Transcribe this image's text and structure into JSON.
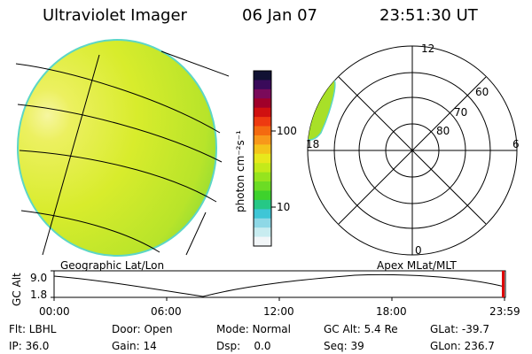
{
  "header": {
    "title": "Ultraviolet Imager",
    "date": "06 Jan 07",
    "time": "23:51:30 UT"
  },
  "colorbar": {
    "unit_label": "photon cm⁻²s⁻¹",
    "ticks": [
      "100",
      "10"
    ],
    "colors": [
      "#111133",
      "#3a0a5a",
      "#7a0a5a",
      "#a0002a",
      "#d01010",
      "#ee3a10",
      "#f46a10",
      "#f8981a",
      "#f4c41a",
      "#e8e81c",
      "#c4ea1a",
      "#96e41e",
      "#6cdc24",
      "#3ed22c",
      "#26c886",
      "#3ec6d6",
      "#8ed8e6",
      "#c8ecf0",
      "#f2f6f8"
    ]
  },
  "polar": {
    "mlt_labels": [
      "12",
      "6",
      "18",
      "0"
    ],
    "mlat_labels": [
      "60",
      "70",
      "80"
    ]
  },
  "panel_labels": {
    "left": "Geographic Lat/Lon",
    "right": "Apex MLat/MLT"
  },
  "altitude_plot": {
    "ylabel": "GC Alt",
    "ytick_top": "9.0",
    "ytick_bottom": "1.8",
    "xticks": [
      "00:00",
      "06:00",
      "12:00",
      "18:00",
      "23:59"
    ],
    "current_marker_color": "#dd0000"
  },
  "footer": {
    "filter": "Flt: LBHL",
    "door": "Door: Open",
    "mode": "Mode: Normal",
    "gc_alt": "GC Alt: 5.4 Re",
    "glat": "GLat: -39.7",
    "ip": "IP: 36.0",
    "gain": "Gain: 14",
    "dsp": "Dsp:    0.0",
    "seq": "Seq: 39",
    "glon": "GLon: 236.7"
  }
}
